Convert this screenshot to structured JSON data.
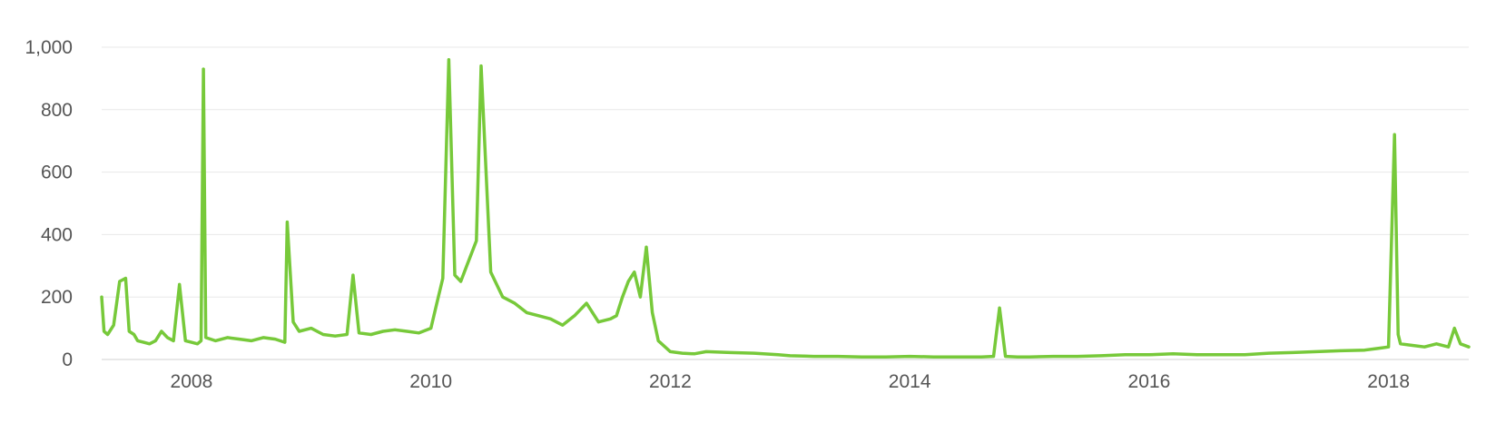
{
  "chart_data": {
    "type": "line",
    "title": "",
    "xlabel": "",
    "ylabel": "",
    "x_range": [
      2007.25,
      2018.67
    ],
    "ylim": [
      0,
      1000
    ],
    "grid": true,
    "legend": "none",
    "x_ticks": [
      2008,
      2010,
      2012,
      2014,
      2016,
      2018
    ],
    "x_tick_labels": [
      "2008",
      "2010",
      "2012",
      "2014",
      "2016",
      "2018"
    ],
    "y_ticks": [
      0,
      200,
      400,
      600,
      800,
      1000
    ],
    "y_tick_labels": [
      "0",
      "200",
      "400",
      "600",
      "800",
      "1,000"
    ],
    "series": [
      {
        "color": "#77c93a",
        "x": [
          2007.25,
          2007.27,
          2007.3,
          2007.35,
          2007.4,
          2007.45,
          2007.48,
          2007.52,
          2007.55,
          2007.6,
          2007.65,
          2007.7,
          2007.75,
          2007.8,
          2007.85,
          2007.9,
          2007.95,
          2008.0,
          2008.05,
          2008.08,
          2008.1,
          2008.12,
          2008.2,
          2008.3,
          2008.4,
          2008.5,
          2008.6,
          2008.7,
          2008.78,
          2008.8,
          2008.85,
          2008.9,
          2009.0,
          2009.1,
          2009.2,
          2009.3,
          2009.35,
          2009.4,
          2009.5,
          2009.6,
          2009.7,
          2009.8,
          2009.9,
          2010.0,
          2010.05,
          2010.1,
          2010.15,
          2010.2,
          2010.25,
          2010.3,
          2010.35,
          2010.38,
          2010.42,
          2010.5,
          2010.6,
          2010.7,
          2010.8,
          2010.9,
          2011.0,
          2011.1,
          2011.2,
          2011.3,
          2011.4,
          2011.5,
          2011.55,
          2011.6,
          2011.65,
          2011.7,
          2011.75,
          2011.8,
          2011.85,
          2011.9,
          2012.0,
          2012.1,
          2012.2,
          2012.3,
          2012.5,
          2012.7,
          2012.9,
          2013.0,
          2013.2,
          2013.4,
          2013.6,
          2013.8,
          2014.0,
          2014.2,
          2014.4,
          2014.6,
          2014.7,
          2014.75,
          2014.8,
          2014.9,
          2015.0,
          2015.2,
          2015.4,
          2015.6,
          2015.8,
          2016.0,
          2016.2,
          2016.4,
          2016.6,
          2016.8,
          2017.0,
          2017.2,
          2017.4,
          2017.6,
          2017.8,
          2017.9,
          2018.0,
          2018.05,
          2018.08,
          2018.1,
          2018.2,
          2018.3,
          2018.4,
          2018.5,
          2018.55,
          2018.6,
          2018.67
        ],
        "y": [
          200,
          90,
          80,
          110,
          250,
          260,
          90,
          80,
          60,
          55,
          50,
          60,
          90,
          70,
          60,
          240,
          60,
          55,
          50,
          60,
          930,
          70,
          60,
          70,
          65,
          60,
          70,
          65,
          55,
          440,
          120,
          90,
          100,
          80,
          75,
          80,
          270,
          85,
          80,
          90,
          95,
          90,
          85,
          100,
          180,
          260,
          960,
          270,
          250,
          300,
          350,
          380,
          940,
          280,
          200,
          180,
          150,
          140,
          130,
          110,
          140,
          180,
          120,
          130,
          140,
          200,
          250,
          280,
          200,
          360,
          150,
          60,
          25,
          20,
          18,
          25,
          22,
          20,
          15,
          12,
          10,
          10,
          8,
          8,
          10,
          8,
          8,
          8,
          10,
          165,
          10,
          8,
          8,
          10,
          10,
          12,
          15,
          15,
          18,
          15,
          15,
          15,
          20,
          22,
          25,
          28,
          30,
          35,
          40,
          720,
          80,
          50,
          45,
          40,
          50,
          40,
          100,
          50,
          40
        ]
      }
    ]
  }
}
